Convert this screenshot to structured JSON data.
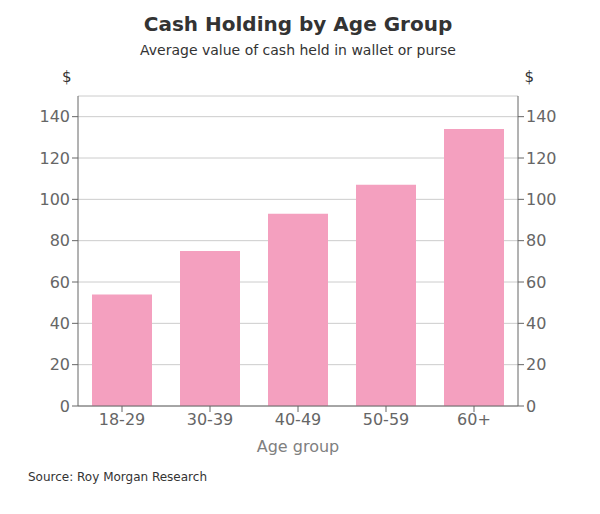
{
  "chart_data": {
    "type": "bar",
    "title": "Cash Holding by Age Group",
    "subtitle": "Average value of cash held in wallet or purse",
    "categories": [
      "18-29",
      "30-39",
      "40-49",
      "50-59",
      "60+"
    ],
    "values": [
      54,
      75,
      93,
      107,
      134
    ],
    "color": "#f4a0bf",
    "xlabel": "Age group",
    "ylabel": "$",
    "y2label": "$",
    "ylim": [
      0,
      150
    ],
    "yticks": [
      0,
      20,
      40,
      60,
      80,
      100,
      120,
      140
    ],
    "y2lim": [
      0,
      150
    ],
    "y2ticks": [
      0,
      20,
      40,
      60,
      80,
      100,
      120,
      140
    ],
    "grid": true,
    "source": "Source: Roy Morgan Research"
  }
}
